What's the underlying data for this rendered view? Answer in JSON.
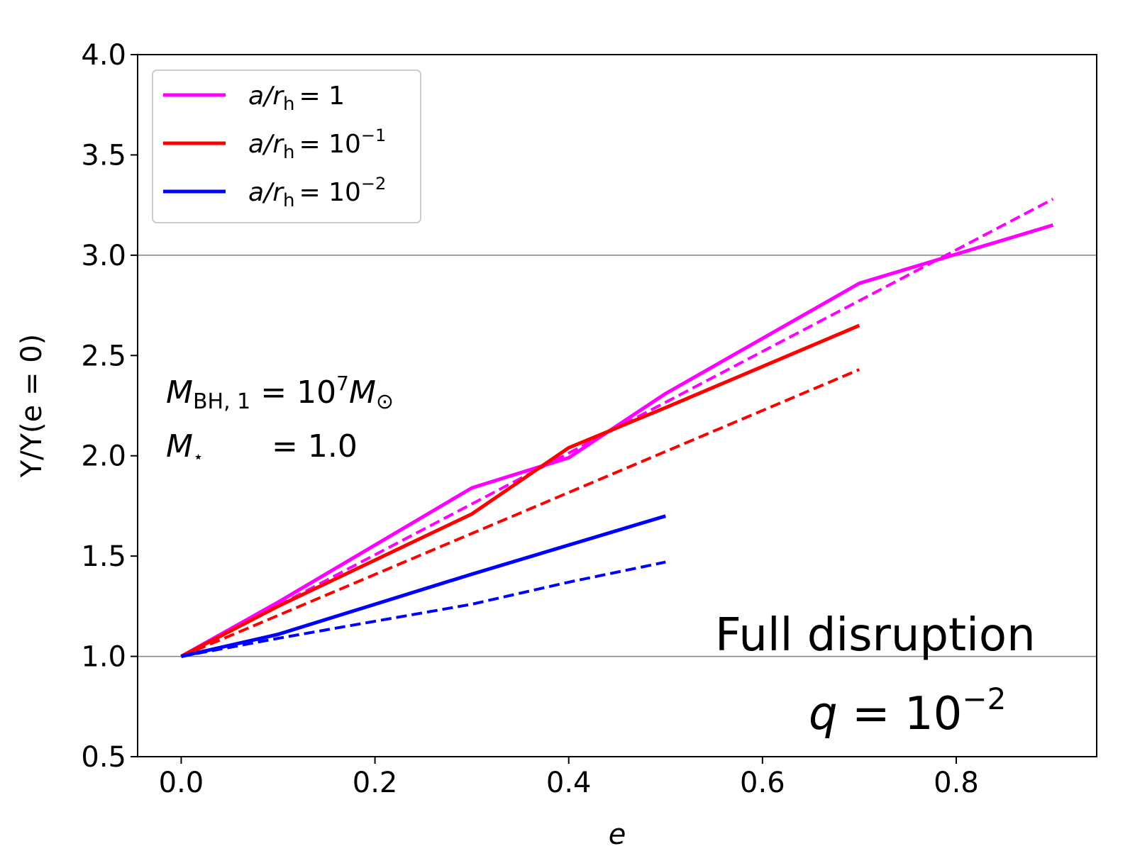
{
  "chart_data": {
    "type": "line",
    "title": "",
    "xlabel": "e",
    "ylabel": "Y/Y(e = 0)",
    "xlim": [
      -0.045,
      0.945
    ],
    "ylim": [
      0.5,
      4.0
    ],
    "xticks": [
      0.0,
      0.2,
      0.4,
      0.6,
      0.8
    ],
    "xtick_labels": [
      "0.0",
      "0.2",
      "0.4",
      "0.6",
      "0.8"
    ],
    "yticks": [
      0.5,
      1.0,
      1.5,
      2.0,
      2.5,
      3.0,
      3.5,
      4.0
    ],
    "ytick_labels": [
      "0.5",
      "1.0",
      "1.5",
      "2.0",
      "2.5",
      "3.0",
      "3.5",
      "4.0"
    ],
    "reference_lines": [
      1.0,
      3.0
    ],
    "grid": false,
    "legend_position": "top-left",
    "legend": [
      {
        "base": "a/r",
        "sub": "h",
        "rhs": "= 1",
        "sup": "",
        "color": "#ff00ff"
      },
      {
        "base": "a/r",
        "sub": "h",
        "rhs": "= 10",
        "sup": "−1",
        "color": "#ff0000"
      },
      {
        "base": "a/r",
        "sub": "h",
        "rhs": "= 10",
        "sup": "−2",
        "color": "#0000ff"
      }
    ],
    "series": [
      {
        "name": "a/r_h = 1",
        "style": "solid",
        "color": "#ff00ff",
        "x": [
          0.0,
          0.1,
          0.3,
          0.4,
          0.5,
          0.7,
          0.9
        ],
        "y": [
          1.0,
          1.27,
          1.84,
          1.99,
          2.31,
          2.86,
          3.15
        ]
      },
      {
        "name": "a/r_h = 1 (dashed)",
        "style": "dashed",
        "color": "#ff00ff",
        "x": [
          0.0,
          0.9
        ],
        "y": [
          1.0,
          3.28
        ]
      },
      {
        "name": "a/r_h = 10^-1",
        "style": "solid",
        "color": "#ff0000",
        "x": [
          0.0,
          0.1,
          0.3,
          0.4,
          0.5,
          0.7
        ],
        "y": [
          1.0,
          1.25,
          1.71,
          2.04,
          2.24,
          2.65
        ]
      },
      {
        "name": "a/r_h = 10^-1 (dashed)",
        "style": "dashed",
        "color": "#ff0000",
        "x": [
          0.0,
          0.7
        ],
        "y": [
          1.0,
          2.43
        ]
      },
      {
        "name": "a/r_h = 10^-2",
        "style": "solid",
        "color": "#0000ff",
        "x": [
          0.0,
          0.1,
          0.3,
          0.5
        ],
        "y": [
          1.0,
          1.11,
          1.41,
          1.7
        ]
      },
      {
        "name": "a/r_h = 10^-2 (dashed)",
        "style": "dashed",
        "color": "#0000ff",
        "x": [
          0.0,
          0.1,
          0.3,
          0.4,
          0.5
        ],
        "y": [
          1.0,
          1.09,
          1.26,
          1.37,
          1.47
        ]
      }
    ],
    "annotations": {
      "mbh": {
        "base": "M",
        "sub": "BH, 1",
        "eq": " = 10",
        "sup": "7",
        "tail": "M",
        "tail_sub": "⊙"
      },
      "mstar": {
        "base": "M",
        "sub": "⋆",
        "eq": "= 1.0"
      },
      "title_text": "Full disruption",
      "q": {
        "base": "q",
        "eq": " = 10",
        "sup": "−2"
      }
    }
  }
}
